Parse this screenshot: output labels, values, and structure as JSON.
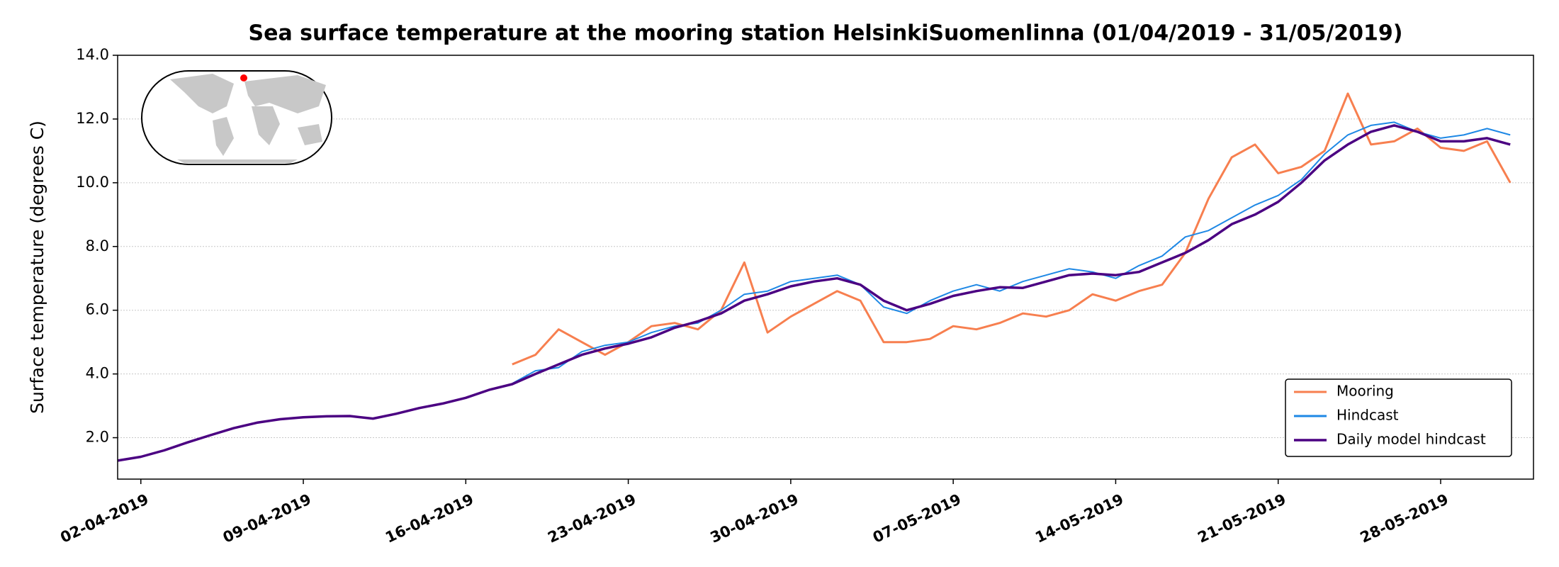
{
  "chart_data": {
    "type": "line",
    "title": "Sea surface temperature at the mooring station HelsinkiSuomenlinna (01/04/2019 - 31/05/2019)",
    "y_label": "Surface temperature (degrees C)",
    "x": [
      "01-04-2019",
      "02-04-2019",
      "03-04-2019",
      "04-04-2019",
      "05-04-2019",
      "06-04-2019",
      "07-04-2019",
      "08-04-2019",
      "09-04-2019",
      "10-04-2019",
      "11-04-2019",
      "12-04-2019",
      "13-04-2019",
      "14-04-2019",
      "15-04-2019",
      "16-04-2019",
      "17-04-2019",
      "18-04-2019",
      "19-04-2019",
      "20-04-2019",
      "21-04-2019",
      "22-04-2019",
      "23-04-2019",
      "24-04-2019",
      "25-04-2019",
      "26-04-2019",
      "27-04-2019",
      "28-04-2019",
      "29-04-2019",
      "30-04-2019",
      "01-05-2019",
      "02-05-2019",
      "03-05-2019",
      "04-05-2019",
      "05-05-2019",
      "06-05-2019",
      "07-05-2019",
      "08-05-2019",
      "09-05-2019",
      "10-05-2019",
      "11-05-2019",
      "12-05-2019",
      "13-05-2019",
      "14-05-2019",
      "15-05-2019",
      "16-05-2019",
      "17-05-2019",
      "18-05-2019",
      "19-05-2019",
      "20-05-2019",
      "21-05-2019",
      "22-05-2019",
      "23-05-2019",
      "24-05-2019",
      "25-05-2019",
      "26-05-2019",
      "27-05-2019",
      "28-05-2019",
      "29-05-2019",
      "30-05-2019",
      "31-05-2019"
    ],
    "series": [
      {
        "name": "Mooring",
        "color": "#f77f4f",
        "values": [
          null,
          null,
          null,
          null,
          null,
          null,
          null,
          null,
          null,
          null,
          null,
          null,
          null,
          null,
          null,
          null,
          null,
          4.3,
          4.6,
          5.4,
          5.0,
          4.6,
          5.0,
          5.5,
          5.6,
          5.4,
          6.0,
          7.5,
          5.3,
          5.8,
          6.2,
          6.6,
          6.3,
          5.0,
          5.0,
          5.1,
          5.5,
          5.4,
          5.6,
          5.9,
          5.8,
          6.0,
          6.5,
          6.3,
          6.6,
          6.8,
          7.8,
          9.5,
          10.8,
          11.2,
          10.3,
          10.5,
          11.0,
          12.8,
          11.2,
          11.3,
          11.7,
          11.1,
          11.0,
          11.3,
          10.0
        ]
      },
      {
        "name": "Hindcast",
        "color": "#1e88e5",
        "values": [
          null,
          null,
          null,
          null,
          null,
          null,
          null,
          null,
          null,
          null,
          null,
          null,
          null,
          null,
          null,
          null,
          null,
          3.7,
          4.1,
          4.2,
          4.7,
          4.9,
          5.0,
          5.3,
          5.5,
          5.6,
          6.0,
          6.5,
          6.6,
          6.9,
          7.0,
          7.1,
          6.8,
          6.1,
          5.9,
          6.3,
          6.6,
          6.8,
          6.6,
          6.9,
          7.1,
          7.3,
          7.2,
          7.0,
          7.4,
          7.7,
          8.3,
          8.5,
          8.9,
          9.3,
          9.6,
          10.1,
          10.9,
          11.5,
          11.8,
          11.9,
          11.6,
          11.4,
          11.5,
          11.7,
          11.5
        ]
      },
      {
        "name": "Daily model hindcast",
        "color": "#4b0082",
        "values": [
          1.28,
          1.4,
          1.6,
          1.85,
          2.08,
          2.3,
          2.47,
          2.58,
          2.64,
          2.67,
          2.68,
          2.6,
          2.75,
          2.93,
          3.07,
          3.25,
          3.5,
          3.68,
          4.0,
          4.3,
          4.6,
          4.8,
          4.95,
          5.15,
          5.45,
          5.65,
          5.9,
          6.3,
          6.5,
          6.75,
          6.9,
          7.0,
          6.8,
          6.3,
          6.0,
          6.2,
          6.45,
          6.6,
          6.72,
          6.7,
          6.9,
          7.1,
          7.15,
          7.1,
          7.2,
          7.5,
          7.8,
          8.2,
          8.7,
          9.0,
          9.4,
          10.0,
          10.7,
          11.2,
          11.6,
          11.8,
          11.6,
          11.3,
          11.3,
          11.4,
          11.2
        ]
      }
    ],
    "xlim": [
      "01-04-2019",
      "01-06-2019"
    ],
    "xticks": [
      "02-04-2019",
      "09-04-2019",
      "16-04-2019",
      "23-04-2019",
      "30-04-2019",
      "07-05-2019",
      "14-05-2019",
      "21-05-2019",
      "28-05-2019"
    ],
    "ylim": [
      0.7,
      14.0
    ],
    "yticks": [
      {
        "value": 2,
        "label": "2.0"
      },
      {
        "value": 4,
        "label": "4.0"
      },
      {
        "value": 6,
        "label": "6.0"
      },
      {
        "value": 8,
        "label": "8.0"
      },
      {
        "value": 10,
        "label": "10.0"
      },
      {
        "value": 12,
        "label": "12.0"
      },
      {
        "value": 14,
        "label": "14.0"
      }
    ],
    "grid": true,
    "legend": "lower right"
  }
}
